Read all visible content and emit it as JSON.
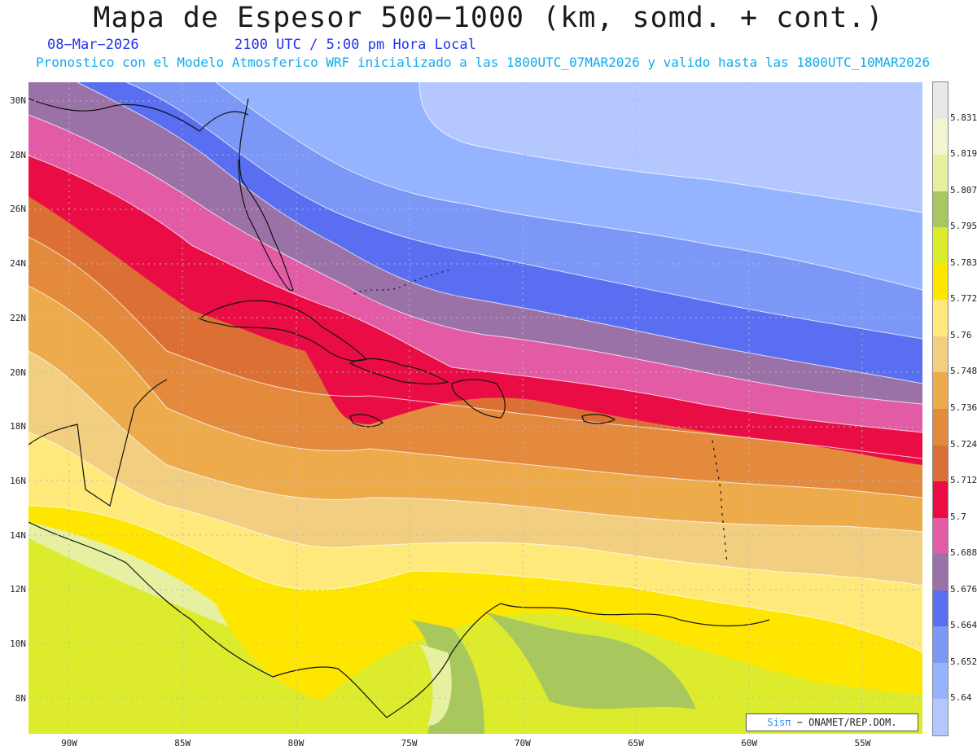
{
  "header": {
    "title": "Mapa de Espesor 500−1000 (km, somd. + cont.)",
    "date": "08−Mar−2026",
    "time": "2100 UTC / 5:00 pm Hora Local",
    "info": "Pronostico con el Modelo Atmosferico WRF inicializado a las 1800UTC_07MAR2026 y valido hasta las  1800UTC_10MAR2026"
  },
  "map": {
    "lat_labels": [
      "30N",
      "28N",
      "26N",
      "24N",
      "22N",
      "20N",
      "18N",
      "16N",
      "14N",
      "12N",
      "10N",
      "8N"
    ],
    "lon_labels": [
      "90W",
      "85W",
      "80W",
      "75W",
      "70W",
      "65W",
      "60W",
      "55W"
    ]
  },
  "legend": {
    "levels": [
      "5.831",
      "5.819",
      "5.807",
      "5.795",
      "5.783",
      "5.772",
      "5.76",
      "5.748",
      "5.736",
      "5.724",
      "5.712",
      "5.7",
      "5.688",
      "5.676",
      "5.664",
      "5.652",
      "5.64"
    ],
    "colors": [
      "#e8e8e8",
      "#f4f6d2",
      "#e6f0a0",
      "#a8c85e",
      "#dceb2c",
      "#ffe600",
      "#ffe97a",
      "#f2cf80",
      "#eeab4c",
      "#e38a3c",
      "#dc7034",
      "#ea0c44",
      "#e35ba4",
      "#9b72a8",
      "#5a6ef2",
      "#7b98f6",
      "#95b4ff",
      "#b4c7ff"
    ]
  },
  "credit": {
    "brand": "Sisπ",
    "text": "− ONAMET/REP.DOM."
  }
}
